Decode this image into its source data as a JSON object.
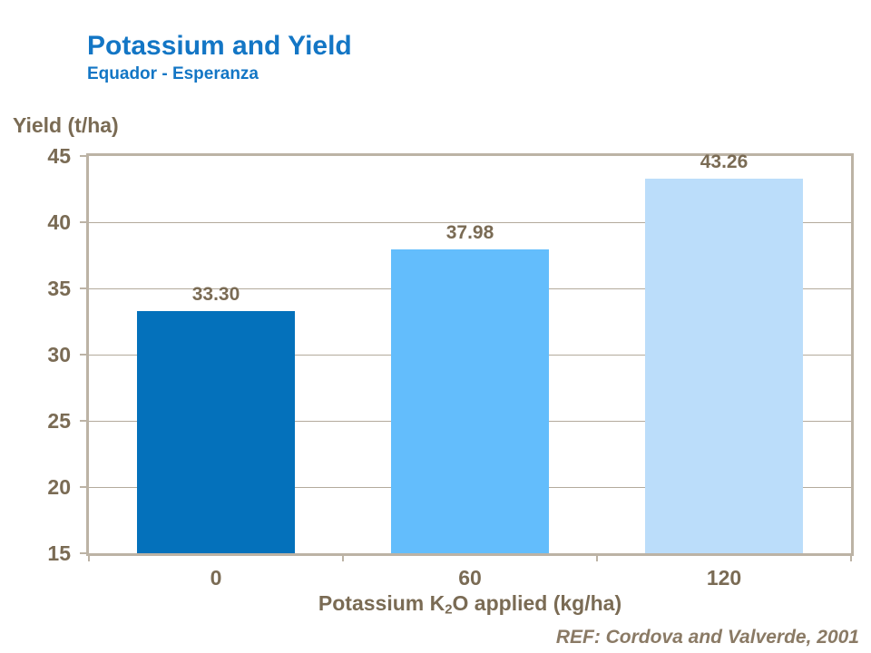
{
  "chart_data": {
    "type": "bar",
    "title": "Potassium and Yield",
    "subtitle": "Equador - Esperanza",
    "ylabel": "Yield (t/ha)",
    "xlabel": "Potassium K2O applied (kg/ha)",
    "xlabel_parts": {
      "pre": "Potassium K",
      "sub": "2",
      "post": "O applied (kg/ha)"
    },
    "categories": [
      "0",
      "60",
      "120"
    ],
    "values": [
      33.3,
      37.98,
      43.26
    ],
    "value_labels": [
      "33.30",
      "37.98",
      "43.26"
    ],
    "ylim": [
      15,
      45
    ],
    "yticks": [
      45,
      40,
      35,
      30,
      25,
      20,
      15
    ],
    "grid": "horizontal",
    "legend": "none",
    "bar_colors": [
      "#0471BB",
      "#63BDFC",
      "#BBDDFA"
    ],
    "reference": "REF: Cordova and Valverde, 2001",
    "colors": {
      "title_blue": "#1376C5",
      "axis_text": "#7A6B54",
      "frame": "#BCB3A5",
      "gridline": "#B3AA9C",
      "ref_text": "#8A7A65"
    }
  }
}
